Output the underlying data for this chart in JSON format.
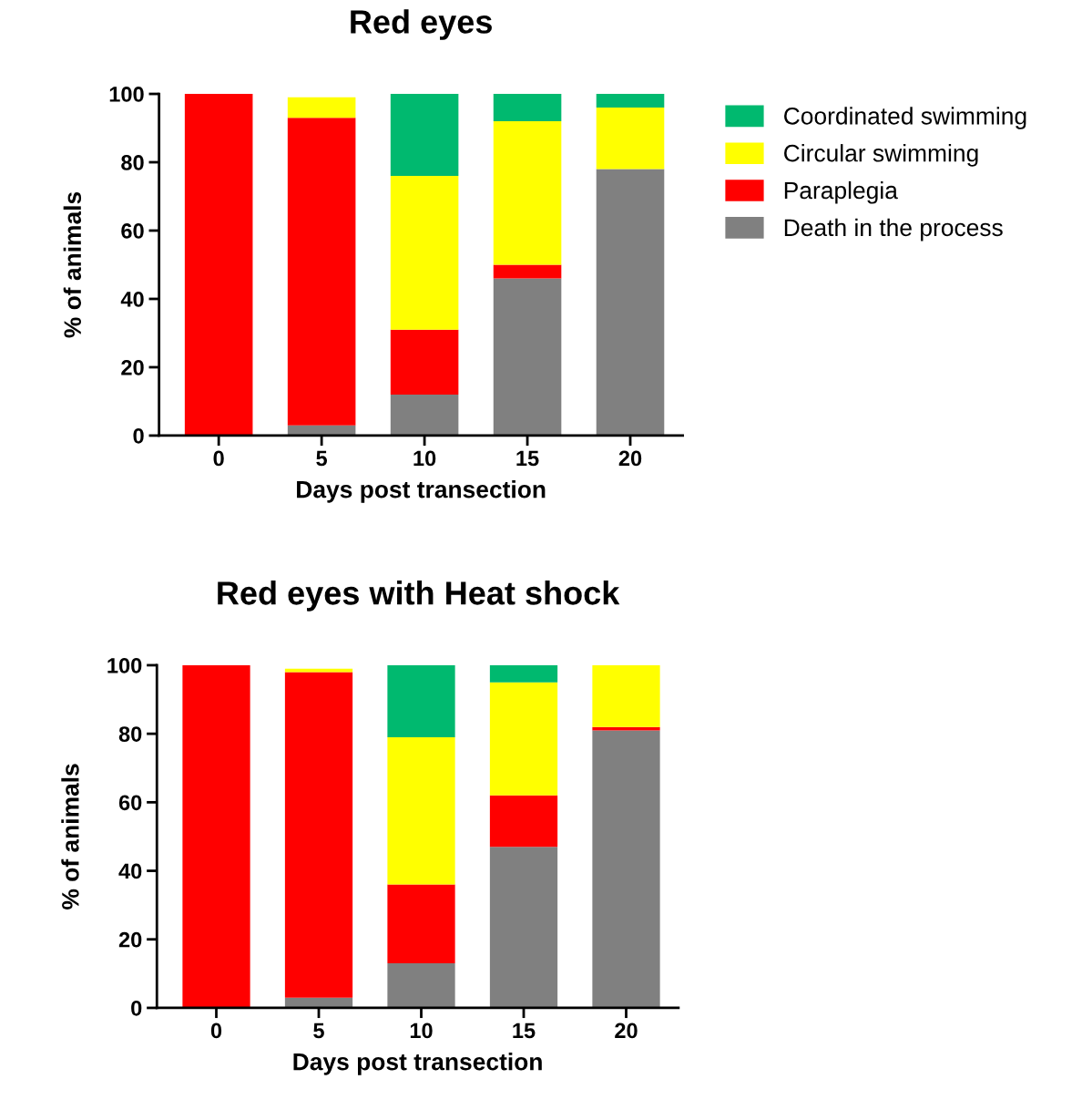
{
  "chart_data": [
    {
      "type": "bar",
      "title": "Red eyes",
      "xlabel": "Days post transection",
      "ylabel": "% of animals",
      "categories": [
        "0",
        "5",
        "10",
        "15",
        "20"
      ],
      "stacked": true,
      "ylim": [
        0,
        100
      ],
      "yticks": [
        0,
        20,
        40,
        60,
        80,
        100
      ],
      "grid": false,
      "legend": "right",
      "series": [
        {
          "name": "Death in the process",
          "color": "#808080",
          "values": [
            0,
            3,
            12,
            46,
            78
          ]
        },
        {
          "name": "Paraplegia",
          "color": "#ff0000",
          "values": [
            100,
            90,
            19,
            4,
            0
          ]
        },
        {
          "name": "Circular swimming",
          "color": "#ffff00",
          "values": [
            0,
            6,
            45,
            42,
            18
          ]
        },
        {
          "name": "Coordinated swimming",
          "color": "#00b96f",
          "values": [
            0,
            0,
            24,
            8,
            4
          ]
        }
      ]
    },
    {
      "type": "bar",
      "title": "Red eyes with Heat shock",
      "xlabel": "Days post transection",
      "ylabel": "% of animals",
      "categories": [
        "0",
        "5",
        "10",
        "15",
        "20"
      ],
      "stacked": true,
      "ylim": [
        0,
        100
      ],
      "yticks": [
        0,
        20,
        40,
        60,
        80,
        100
      ],
      "grid": false,
      "legend": false,
      "series": [
        {
          "color": "#808080",
          "values": [
            0,
            3,
            13,
            47,
            81
          ]
        },
        {
          "color": "#ff0000",
          "values": [
            100,
            95,
            23,
            15,
            1
          ]
        },
        {
          "color": "#ffff00",
          "values": [
            0,
            1,
            43,
            33,
            18
          ]
        },
        {
          "color": "#00b96f",
          "values": [
            0,
            0,
            21,
            5,
            0
          ]
        }
      ]
    }
  ]
}
